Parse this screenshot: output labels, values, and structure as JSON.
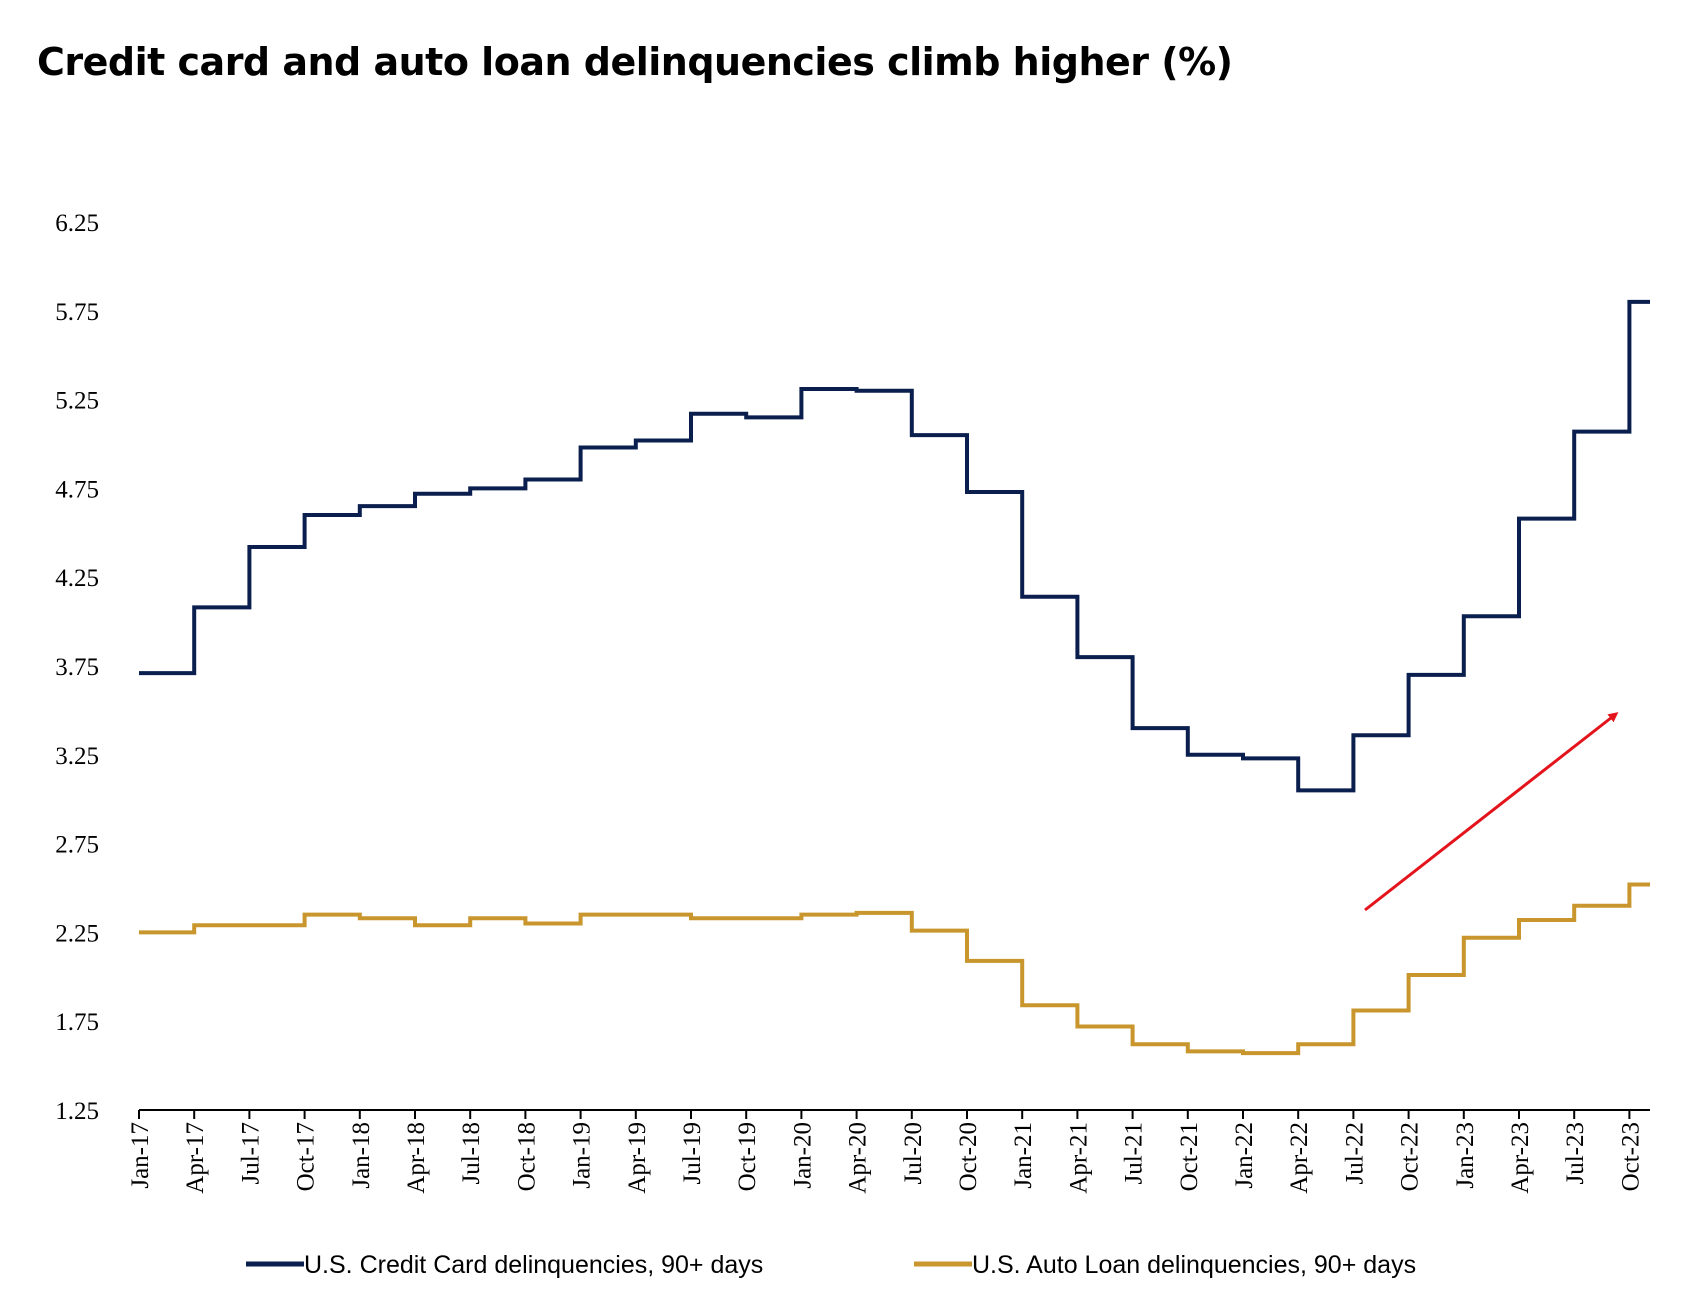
{
  "chart_data": {
    "type": "line",
    "step": true,
    "title": "Credit card and auto loan delinquencies climb higher (%)",
    "xlabel": "",
    "ylabel": "",
    "ylim": [
      1.25,
      6.25
    ],
    "yticks": [
      "1.25",
      "1.75",
      "2.25",
      "2.75",
      "3.25",
      "3.75",
      "4.25",
      "4.75",
      "5.25",
      "5.75",
      "6.25"
    ],
    "x_ticks": [
      "Jan-17",
      "Apr-17",
      "Jul-17",
      "Oct-17",
      "Jan-18",
      "Apr-18",
      "Jul-18",
      "Oct-18",
      "Jan-19",
      "Apr-19",
      "Jul-19",
      "Oct-19",
      "Jan-20",
      "Apr-20",
      "Jul-20",
      "Oct-20",
      "Jan-21",
      "Apr-21",
      "Jul-21",
      "Oct-21",
      "Jan-22",
      "Apr-22",
      "Jul-22",
      "Oct-22",
      "Jan-23",
      "Apr-23",
      "Jul-23",
      "Oct-23"
    ],
    "grid": false,
    "legend_position": "bottom",
    "annotation": "red upward arrow",
    "series": [
      {
        "name": "U.S. Credit Card delinquencies, 90+ days",
        "color": "#0b1f4f",
        "values": [
          3.71,
          4.08,
          4.42,
          4.6,
          4.65,
          4.72,
          4.75,
          4.8,
          4.98,
          5.02,
          5.17,
          5.15,
          5.31,
          5.3,
          5.05,
          4.73,
          4.14,
          3.8,
          3.4,
          3.25,
          3.23,
          3.05,
          3.36,
          3.7,
          4.03,
          4.58,
          5.07,
          5.8
        ]
      },
      {
        "name": "U.S. Auto Loan delinquencies, 90+ days",
        "color": "#c8962c",
        "values": [
          2.25,
          2.29,
          2.29,
          2.35,
          2.33,
          2.29,
          2.33,
          2.3,
          2.35,
          2.35,
          2.33,
          2.33,
          2.35,
          2.36,
          2.26,
          2.09,
          1.84,
          1.72,
          1.62,
          1.58,
          1.57,
          1.62,
          1.81,
          2.01,
          2.22,
          2.32,
          2.4,
          2.52
        ]
      }
    ]
  }
}
